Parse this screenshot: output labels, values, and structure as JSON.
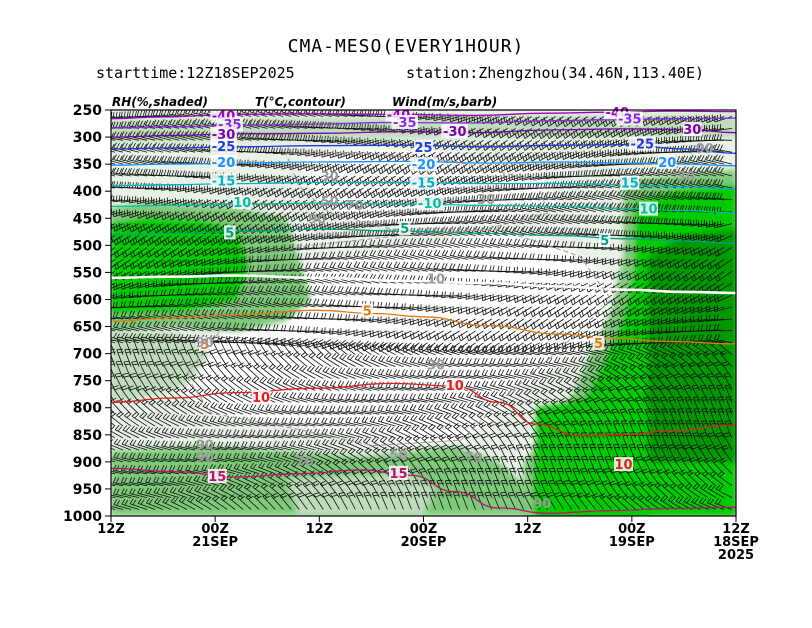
{
  "title": "CMA-MESO(EVERY1HOUR)",
  "starttime": "starttime:12Z18SEP2025",
  "station": "station:Zhengzhou(34.46N,113.40E)",
  "legend": {
    "rh": "RH(%,shaded)",
    "temp": "T(°C,contour)",
    "wind": "Wind(m/s,barb)"
  },
  "colors": {
    "rh_light": "#e9f2e7",
    "rh_mid": "#bfdcbc",
    "rh_70": "#7fc97a",
    "rh_80": "#00cc00",
    "rh_90": "#009a00",
    "temp_neg40": "#a000c0",
    "temp_neg35": "#8a2be2",
    "temp_neg30": "#7a00b0",
    "temp_neg25": "#1e3cd8",
    "temp_neg20": "#1e90ff",
    "temp_neg15": "#00b2c8",
    "temp_neg10": "#00c0a0",
    "temp_neg5": "#00a080",
    "temp_5": "#e07a10",
    "temp_10": "#e02020",
    "temp_15": "#c0106a"
  },
  "chart_data": {
    "type": "heatmap",
    "subtype": "time-height cross section (RH shaded, temperature contours, wind barbs)",
    "y_axis": {
      "ticks": [
        250,
        300,
        350,
        400,
        450,
        500,
        550,
        600,
        650,
        700,
        750,
        800,
        850,
        900,
        950,
        1000
      ],
      "range": [
        250,
        1000
      ],
      "direction": "top-to-bottom"
    },
    "x_axis": {
      "tick_labels": [
        {
          "time": "12Z",
          "date": ""
        },
        {
          "time": "00Z",
          "date": "21SEP"
        },
        {
          "time": "12Z",
          "date": ""
        },
        {
          "time": "00Z",
          "date": "20SEP"
        },
        {
          "time": "12Z",
          "date": ""
        },
        {
          "time": "00Z",
          "date": "19SEP"
        },
        {
          "time": "12Z",
          "date": "18SEP",
          "year": "2025"
        }
      ],
      "direction": "time decreasing left-to-right"
    },
    "temperature_contours": [
      {
        "value": -40,
        "label": "-40",
        "color": "#a000c0",
        "points": [
          [
            0,
            266
          ],
          [
            0.08,
            263
          ],
          [
            0.2,
            258
          ],
          [
            0.32,
            257
          ],
          [
            0.45,
            258
          ],
          [
            0.58,
            260
          ],
          [
            0.7,
            256
          ],
          [
            0.8,
            254
          ],
          [
            0.9,
            252
          ],
          [
            1,
            253
          ]
        ]
      },
      {
        "value": -35,
        "label": "-35",
        "color": "#8a2be2",
        "points": [
          [
            0,
            283
          ],
          [
            0.1,
            281
          ],
          [
            0.2,
            278
          ],
          [
            0.32,
            276
          ],
          [
            0.45,
            273
          ],
          [
            0.58,
            274
          ],
          [
            0.7,
            270
          ],
          [
            0.8,
            268
          ],
          [
            0.9,
            266
          ],
          [
            1,
            265
          ]
        ]
      },
      {
        "value": -30,
        "label": "-30",
        "color": "#7a00b0",
        "points": [
          [
            0,
            300
          ],
          [
            0.1,
            297
          ],
          [
            0.2,
            294
          ],
          [
            0.33,
            293
          ],
          [
            0.47,
            290
          ],
          [
            0.58,
            292
          ],
          [
            0.7,
            287
          ],
          [
            0.82,
            285
          ],
          [
            0.92,
            286
          ],
          [
            1,
            292
          ]
        ]
      },
      {
        "value": -25,
        "label": "-25",
        "color": "#1e3cd8",
        "points": [
          [
            0,
            322
          ],
          [
            0.1,
            320
          ],
          [
            0.2,
            318
          ],
          [
            0.33,
            316
          ],
          [
            0.47,
            315
          ],
          [
            0.6,
            318
          ],
          [
            0.72,
            315
          ],
          [
            0.82,
            314
          ],
          [
            0.92,
            322
          ],
          [
            1,
            330
          ]
        ]
      },
      {
        "value": -20,
        "label": "-20",
        "color": "#1e90ff",
        "points": [
          [
            0,
            352
          ],
          [
            0.1,
            350
          ],
          [
            0.2,
            348
          ],
          [
            0.33,
            346
          ],
          [
            0.48,
            345
          ],
          [
            0.6,
            348
          ],
          [
            0.72,
            346
          ],
          [
            0.82,
            348
          ],
          [
            0.92,
            350
          ],
          [
            1,
            353
          ]
        ]
      },
      {
        "value": -15,
        "label": "-15",
        "color": "#00b2c8",
        "points": [
          [
            0,
            390
          ],
          [
            0.1,
            388
          ],
          [
            0.2,
            386
          ],
          [
            0.33,
            384
          ],
          [
            0.48,
            384
          ],
          [
            0.6,
            386
          ],
          [
            0.72,
            386
          ],
          [
            0.82,
            388
          ],
          [
            0.92,
            392
          ],
          [
            1,
            396
          ]
        ]
      },
      {
        "value": -10,
        "label": "-10",
        "color": "#00c0a0",
        "points": [
          [
            0,
            428
          ],
          [
            0.1,
            426
          ],
          [
            0.2,
            424
          ],
          [
            0.33,
            422
          ],
          [
            0.48,
            424
          ],
          [
            0.6,
            426
          ],
          [
            0.72,
            428
          ],
          [
            0.82,
            432
          ],
          [
            0.92,
            436
          ],
          [
            1,
            440
          ]
        ]
      },
      {
        "value": -5,
        "label": "-5",
        "color": "#00a080",
        "points": [
          [
            0,
            480
          ],
          [
            0.1,
            478
          ],
          [
            0.2,
            474
          ],
          [
            0.33,
            470
          ],
          [
            0.48,
            474
          ],
          [
            0.6,
            478
          ],
          [
            0.72,
            482
          ],
          [
            0.82,
            488
          ],
          [
            0.92,
            492
          ],
          [
            1,
            496
          ]
        ]
      },
      {
        "value": 0,
        "label": "0",
        "color": "#ffffff",
        "points": [
          [
            0,
            560
          ],
          [
            0.1,
            558
          ],
          [
            0.2,
            556
          ],
          [
            0.33,
            560
          ],
          [
            0.48,
            566
          ],
          [
            0.6,
            570
          ],
          [
            0.72,
            576
          ],
          [
            0.82,
            582
          ],
          [
            0.92,
            586
          ],
          [
            1,
            588
          ]
        ]
      },
      {
        "value": 5,
        "label": "5",
        "color": "#e07a10",
        "points": [
          [
            0,
            640
          ],
          [
            0.1,
            634
          ],
          [
            0.2,
            628
          ],
          [
            0.33,
            620
          ],
          [
            0.42,
            626
          ],
          [
            0.5,
            632
          ],
          [
            0.6,
            648
          ],
          [
            0.72,
            664
          ],
          [
            0.8,
            672
          ],
          [
            0.9,
            678
          ],
          [
            1,
            682
          ]
        ]
      },
      {
        "value": 10,
        "label": "10",
        "color": "#e02020",
        "points": [
          [
            0,
            790
          ],
          [
            0.1,
            782
          ],
          [
            0.2,
            772
          ],
          [
            0.33,
            764
          ],
          [
            0.45,
            755
          ],
          [
            0.55,
            760
          ],
          [
            0.62,
            790
          ],
          [
            0.68,
            830
          ],
          [
            0.75,
            852
          ],
          [
            0.82,
            850
          ],
          [
            0.9,
            842
          ],
          [
            1,
            832
          ]
        ]
      },
      {
        "value": 15,
        "label": "15",
        "color": "#c0106a",
        "points": [
          [
            0,
            912
          ],
          [
            0.1,
            918
          ],
          [
            0.2,
            928
          ],
          [
            0.3,
            922
          ],
          [
            0.4,
            915
          ],
          [
            0.48,
            925
          ],
          [
            0.55,
            955
          ],
          [
            0.62,
            985
          ],
          [
            0.7,
            995
          ],
          [
            0.8,
            990
          ],
          [
            0.9,
            986
          ],
          [
            1,
            984
          ]
        ]
      }
    ],
    "temp_labels": [
      {
        "value": "-40",
        "x": 0.18,
        "p": 262,
        "color": "#a000c0"
      },
      {
        "value": "-40",
        "x": 0.46,
        "p": 260,
        "color": "#a000c0"
      },
      {
        "value": "-40",
        "x": 0.81,
        "p": 256,
        "color": "#a000c0"
      },
      {
        "value": "-35",
        "x": 0.19,
        "p": 278,
        "color": "#8a2be2"
      },
      {
        "value": "-35",
        "x": 0.47,
        "p": 274,
        "color": "#8a2be2"
      },
      {
        "value": "-35",
        "x": 0.83,
        "p": 268,
        "color": "#8a2be2"
      },
      {
        "value": "-30",
        "x": 0.18,
        "p": 296,
        "color": "#7a00b0"
      },
      {
        "value": "-30",
        "x": 0.55,
        "p": 291,
        "color": "#7a00b0"
      },
      {
        "value": "30",
        "x": 0.93,
        "p": 287,
        "color": "#7a00b0"
      },
      {
        "value": "-25",
        "x": 0.18,
        "p": 318,
        "color": "#1e3cd8"
      },
      {
        "value": "25",
        "x": 0.5,
        "p": 320,
        "color": "#1e3cd8"
      },
      {
        "value": "-25",
        "x": 0.85,
        "p": 314,
        "color": "#1e3cd8"
      },
      {
        "value": "-20",
        "x": 0.18,
        "p": 348,
        "color": "#1e90ff"
      },
      {
        "value": "-20",
        "x": 0.5,
        "p": 352,
        "color": "#1e90ff"
      },
      {
        "value": "20",
        "x": 0.89,
        "p": 348,
        "color": "#1e90ff"
      },
      {
        "value": "-15",
        "x": 0.18,
        "p": 382,
        "color": "#00b2c8"
      },
      {
        "value": "-15",
        "x": 0.5,
        "p": 386,
        "color": "#00b2c8"
      },
      {
        "value": "15",
        "x": 0.83,
        "p": 386,
        "color": "#00b2c8"
      },
      {
        "value": "10",
        "x": 0.21,
        "p": 422,
        "color": "#00c0a0"
      },
      {
        "value": "-10",
        "x": 0.51,
        "p": 424,
        "color": "#00c0a0"
      },
      {
        "value": "10",
        "x": 0.86,
        "p": 434,
        "color": "#00c0a0"
      },
      {
        "value": "5",
        "x": 0.19,
        "p": 478,
        "color": "#00a080"
      },
      {
        "value": "5",
        "x": 0.47,
        "p": 470,
        "color": "#00a080"
      },
      {
        "value": "5",
        "x": 0.79,
        "p": 492,
        "color": "#00a080"
      },
      {
        "value": "5",
        "x": 0.41,
        "p": 622,
        "color": "#e07a10"
      },
      {
        "value": "5",
        "x": 0.15,
        "p": 684,
        "color": "#e07a10"
      },
      {
        "value": "5",
        "x": 0.78,
        "p": 682,
        "color": "#e07a10"
      },
      {
        "value": "10",
        "x": 0.24,
        "p": 782,
        "color": "#e02020"
      },
      {
        "value": "10",
        "x": 0.55,
        "p": 760,
        "color": "#e02020"
      },
      {
        "value": "10",
        "x": 0.82,
        "p": 906,
        "color": "#e02020"
      },
      {
        "value": "15",
        "x": 0.17,
        "p": 928,
        "color": "#c0106a"
      },
      {
        "value": "15",
        "x": 0.46,
        "p": 922,
        "color": "#c0106a"
      }
    ],
    "rh_labels": [
      {
        "value": "30",
        "x": 0.35,
        "p": 374
      },
      {
        "value": "50",
        "x": 0.35,
        "p": 420
      },
      {
        "value": "70",
        "x": 0.39,
        "p": 427
      },
      {
        "value": "90",
        "x": 0.33,
        "p": 452
      },
      {
        "value": "30",
        "x": 0.6,
        "p": 416
      },
      {
        "value": "10",
        "x": 0.52,
        "p": 563
      },
      {
        "value": "30",
        "x": 0.52,
        "p": 722
      },
      {
        "value": "30",
        "x": 0.92,
        "p": 374
      },
      {
        "value": "90",
        "x": 0.95,
        "p": 322
      },
      {
        "value": "90",
        "x": 0.15,
        "p": 680
      },
      {
        "value": "90",
        "x": 0.15,
        "p": 870
      },
      {
        "value": "90",
        "x": 0.15,
        "p": 893
      },
      {
        "value": "70",
        "x": 0.31,
        "p": 900
      },
      {
        "value": "50",
        "x": 0.46,
        "p": 888
      },
      {
        "value": "70",
        "x": 0.58,
        "p": 893
      },
      {
        "value": "90",
        "x": 0.69,
        "p": 978
      }
    ]
  }
}
